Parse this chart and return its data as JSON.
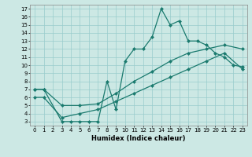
{
  "xlabel": "Humidex (Indice chaleur)",
  "bg_color": "#cce8e4",
  "line_color": "#1a7a6e",
  "grid_color": "#99cccc",
  "xlim": [
    -0.5,
    23.5
  ],
  "ylim": [
    2.5,
    17.5
  ],
  "xticks": [
    0,
    1,
    2,
    3,
    4,
    5,
    6,
    7,
    8,
    9,
    10,
    11,
    12,
    13,
    14,
    15,
    16,
    17,
    18,
    19,
    20,
    21,
    22,
    23
  ],
  "yticks": [
    3,
    4,
    5,
    6,
    7,
    8,
    9,
    10,
    11,
    12,
    13,
    14,
    15,
    16,
    17
  ],
  "curve1_x": [
    0,
    1,
    3,
    4,
    5,
    6,
    7,
    8,
    9,
    10,
    11,
    12,
    13,
    14,
    15,
    16,
    17,
    18,
    19,
    20,
    21,
    22,
    23
  ],
  "curve1_y": [
    7.0,
    7.0,
    3.0,
    3.0,
    3.0,
    3.0,
    3.0,
    8.0,
    4.5,
    10.5,
    12.0,
    12.0,
    13.5,
    17.0,
    15.0,
    15.5,
    13.0,
    13.0,
    12.5,
    11.5,
    11.0,
    10.0,
    9.8
  ],
  "curve2_x": [
    0,
    1,
    3,
    5,
    7,
    9,
    11,
    13,
    15,
    17,
    19,
    21,
    23
  ],
  "curve2_y": [
    7.0,
    7.0,
    5.0,
    5.0,
    5.2,
    6.5,
    8.0,
    9.2,
    10.5,
    11.5,
    12.0,
    12.5,
    12.0
  ],
  "curve3_x": [
    0,
    1,
    3,
    5,
    7,
    9,
    11,
    13,
    15,
    17,
    19,
    21,
    23
  ],
  "curve3_y": [
    6.0,
    6.0,
    3.5,
    4.0,
    4.5,
    5.5,
    6.5,
    7.5,
    8.5,
    9.5,
    10.5,
    11.5,
    9.5
  ]
}
